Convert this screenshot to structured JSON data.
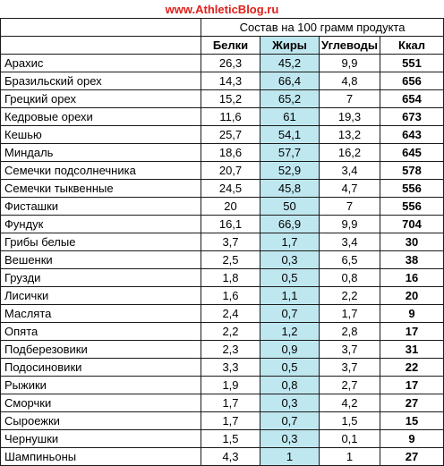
{
  "header": {
    "site": "www.AthleticBlog.ru"
  },
  "table": {
    "group_header": "Состав на 100 грамм продукта",
    "columns": [
      "Белки",
      "Жиры",
      "Углеводы",
      "Ккал"
    ],
    "rows": [
      {
        "name": "Арахис",
        "protein": "26,3",
        "fat": "45,2",
        "carbs": "9,9",
        "kcal": "551"
      },
      {
        "name": "Бразильский орех",
        "protein": "14,3",
        "fat": "66,4",
        "carbs": "4,8",
        "kcal": "656"
      },
      {
        "name": "Грецкий орех",
        "protein": "15,2",
        "fat": "65,2",
        "carbs": "7",
        "kcal": "654"
      },
      {
        "name": "Кедровые орехи",
        "protein": "11,6",
        "fat": "61",
        "carbs": "19,3",
        "kcal": "673"
      },
      {
        "name": "Кешью",
        "protein": "25,7",
        "fat": "54,1",
        "carbs": "13,2",
        "kcal": "643"
      },
      {
        "name": "Миндаль",
        "protein": "18,6",
        "fat": "57,7",
        "carbs": "16,2",
        "kcal": "645"
      },
      {
        "name": "Семечки подсолнечника",
        "protein": "20,7",
        "fat": "52,9",
        "carbs": "3,4",
        "kcal": "578"
      },
      {
        "name": "Семечки тыквенные",
        "protein": "24,5",
        "fat": "45,8",
        "carbs": "4,7",
        "kcal": "556"
      },
      {
        "name": "Фисташки",
        "protein": "20",
        "fat": "50",
        "carbs": "7",
        "kcal": "556"
      },
      {
        "name": "Фундук",
        "protein": "16,1",
        "fat": "66,9",
        "carbs": "9,9",
        "kcal": "704"
      },
      {
        "name": "Грибы белые",
        "protein": "3,7",
        "fat": "1,7",
        "carbs": "3,4",
        "kcal": "30"
      },
      {
        "name": "Вешенки",
        "protein": "2,5",
        "fat": "0,3",
        "carbs": "6,5",
        "kcal": "38"
      },
      {
        "name": "Грузди",
        "protein": "1,8",
        "fat": "0,5",
        "carbs": "0,8",
        "kcal": "16"
      },
      {
        "name": "Лисички",
        "protein": "1,6",
        "fat": "1,1",
        "carbs": "2,2",
        "kcal": "20"
      },
      {
        "name": "Маслята",
        "protein": "2,4",
        "fat": "0,7",
        "carbs": "1,7",
        "kcal": "9"
      },
      {
        "name": "Опята",
        "protein": "2,2",
        "fat": "1,2",
        "carbs": "2,8",
        "kcal": "17"
      },
      {
        "name": "Подберезовики",
        "protein": "2,3",
        "fat": "0,9",
        "carbs": "3,7",
        "kcal": "31"
      },
      {
        "name": "Подосиновики",
        "protein": "3,3",
        "fat": "0,5",
        "carbs": "3,7",
        "kcal": "22"
      },
      {
        "name": "Рыжики",
        "protein": "1,9",
        "fat": "0,8",
        "carbs": "2,7",
        "kcal": "17"
      },
      {
        "name": "Сморчки",
        "protein": "1,7",
        "fat": "0,3",
        "carbs": "4,2",
        "kcal": "27"
      },
      {
        "name": "Сыроежки",
        "protein": "1,7",
        "fat": "0,7",
        "carbs": "1,5",
        "kcal": "15"
      },
      {
        "name": "Чернушки",
        "protein": "1,5",
        "fat": "0,3",
        "carbs": "0,1",
        "kcal": "9"
      },
      {
        "name": "Шампиньоны",
        "protein": "4,3",
        "fat": "1",
        "carbs": "1",
        "kcal": "27"
      }
    ]
  },
  "colors": {
    "site_title": "#e0201a",
    "fat_highlight": "#bfe7ef",
    "grid": "#1a1a1a"
  }
}
